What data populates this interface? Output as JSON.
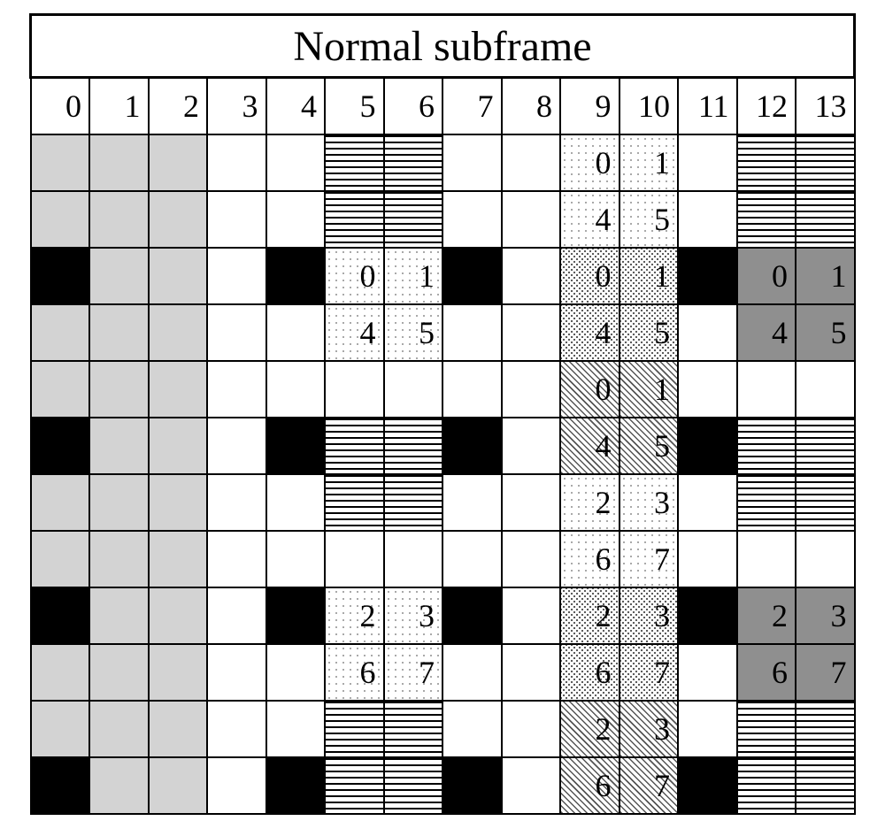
{
  "title": "Normal subframe",
  "columns": 14,
  "rows": 12,
  "font_family": "Times New Roman",
  "title_fontsize_pt": 36,
  "cell_fontsize_pt": 27,
  "palette": {
    "border": "#000000",
    "bg": "#ffffff",
    "light_grey": "#d3d3d3",
    "dark_grey": "#8f8f8f",
    "black": "#000000"
  },
  "fill_legend": {
    "": "white / empty",
    "lgrey": "solid light grey",
    "black": "solid black",
    "dgrey": "solid dark grey",
    "hstripe": "horizontal stripes",
    "diag": "45° diagonal hatch",
    "dots-sparse": "sparse dot stipple",
    "dots-dense": "dense dot stipple"
  },
  "headers": [
    "0",
    "1",
    "2",
    "3",
    "4",
    "5",
    "6",
    "7",
    "8",
    "9",
    "10",
    "11",
    "12",
    "13"
  ],
  "cells": [
    [
      {
        "f": "lgrey"
      },
      {
        "f": "lgrey"
      },
      {
        "f": "lgrey"
      },
      {
        "f": ""
      },
      {
        "f": ""
      },
      {
        "f": "hstripe"
      },
      {
        "f": "hstripe"
      },
      {
        "f": ""
      },
      {
        "f": ""
      },
      {
        "f": "dots-sparse",
        "t": "0"
      },
      {
        "f": "dots-sparse",
        "t": "1"
      },
      {
        "f": ""
      },
      {
        "f": "hstripe"
      },
      {
        "f": "hstripe"
      }
    ],
    [
      {
        "f": "lgrey"
      },
      {
        "f": "lgrey"
      },
      {
        "f": "lgrey"
      },
      {
        "f": ""
      },
      {
        "f": ""
      },
      {
        "f": "hstripe"
      },
      {
        "f": "hstripe"
      },
      {
        "f": ""
      },
      {
        "f": ""
      },
      {
        "f": "dots-sparse",
        "t": "4"
      },
      {
        "f": "dots-sparse",
        "t": "5"
      },
      {
        "f": ""
      },
      {
        "f": "hstripe"
      },
      {
        "f": "hstripe"
      }
    ],
    [
      {
        "f": "black"
      },
      {
        "f": "lgrey"
      },
      {
        "f": "lgrey"
      },
      {
        "f": ""
      },
      {
        "f": "black"
      },
      {
        "f": "dots-sparse",
        "t": "0"
      },
      {
        "f": "dots-sparse",
        "t": "1"
      },
      {
        "f": "black"
      },
      {
        "f": ""
      },
      {
        "f": "dots-dense",
        "t": "0"
      },
      {
        "f": "dots-dense",
        "t": "1"
      },
      {
        "f": "black"
      },
      {
        "f": "dgrey",
        "t": "0"
      },
      {
        "f": "dgrey",
        "t": "1"
      }
    ],
    [
      {
        "f": "lgrey"
      },
      {
        "f": "lgrey"
      },
      {
        "f": "lgrey"
      },
      {
        "f": ""
      },
      {
        "f": ""
      },
      {
        "f": "dots-sparse",
        "t": "4"
      },
      {
        "f": "dots-sparse",
        "t": "5"
      },
      {
        "f": ""
      },
      {
        "f": ""
      },
      {
        "f": "dots-dense",
        "t": "4"
      },
      {
        "f": "dots-dense",
        "t": "5"
      },
      {
        "f": ""
      },
      {
        "f": "dgrey",
        "t": "4"
      },
      {
        "f": "dgrey",
        "t": "5"
      }
    ],
    [
      {
        "f": "lgrey"
      },
      {
        "f": "lgrey"
      },
      {
        "f": "lgrey"
      },
      {
        "f": ""
      },
      {
        "f": ""
      },
      {
        "f": ""
      },
      {
        "f": ""
      },
      {
        "f": ""
      },
      {
        "f": ""
      },
      {
        "f": "diag",
        "t": "0"
      },
      {
        "f": "diag",
        "t": "1"
      },
      {
        "f": ""
      },
      {
        "f": ""
      },
      {
        "f": ""
      }
    ],
    [
      {
        "f": "black"
      },
      {
        "f": "lgrey"
      },
      {
        "f": "lgrey"
      },
      {
        "f": ""
      },
      {
        "f": "black"
      },
      {
        "f": "hstripe"
      },
      {
        "f": "hstripe"
      },
      {
        "f": "black"
      },
      {
        "f": ""
      },
      {
        "f": "diag",
        "t": "4"
      },
      {
        "f": "diag",
        "t": "5"
      },
      {
        "f": "black"
      },
      {
        "f": "hstripe"
      },
      {
        "f": "hstripe"
      }
    ],
    [
      {
        "f": "lgrey"
      },
      {
        "f": "lgrey"
      },
      {
        "f": "lgrey"
      },
      {
        "f": ""
      },
      {
        "f": ""
      },
      {
        "f": "hstripe"
      },
      {
        "f": "hstripe"
      },
      {
        "f": ""
      },
      {
        "f": ""
      },
      {
        "f": "dots-sparse",
        "t": "2"
      },
      {
        "f": "dots-sparse",
        "t": "3"
      },
      {
        "f": ""
      },
      {
        "f": "hstripe"
      },
      {
        "f": "hstripe"
      }
    ],
    [
      {
        "f": "lgrey"
      },
      {
        "f": "lgrey"
      },
      {
        "f": "lgrey"
      },
      {
        "f": ""
      },
      {
        "f": ""
      },
      {
        "f": ""
      },
      {
        "f": ""
      },
      {
        "f": ""
      },
      {
        "f": ""
      },
      {
        "f": "dots-sparse",
        "t": "6"
      },
      {
        "f": "dots-sparse",
        "t": "7"
      },
      {
        "f": ""
      },
      {
        "f": ""
      },
      {
        "f": ""
      }
    ],
    [
      {
        "f": "black"
      },
      {
        "f": "lgrey"
      },
      {
        "f": "lgrey"
      },
      {
        "f": ""
      },
      {
        "f": "black"
      },
      {
        "f": "dots-sparse",
        "t": "2"
      },
      {
        "f": "dots-sparse",
        "t": "3"
      },
      {
        "f": "black"
      },
      {
        "f": ""
      },
      {
        "f": "dots-dense",
        "t": "2"
      },
      {
        "f": "dots-dense",
        "t": "3"
      },
      {
        "f": "black"
      },
      {
        "f": "dgrey",
        "t": "2"
      },
      {
        "f": "dgrey",
        "t": "3"
      }
    ],
    [
      {
        "f": "lgrey"
      },
      {
        "f": "lgrey"
      },
      {
        "f": "lgrey"
      },
      {
        "f": ""
      },
      {
        "f": ""
      },
      {
        "f": "dots-sparse",
        "t": "6"
      },
      {
        "f": "dots-sparse",
        "t": "7"
      },
      {
        "f": ""
      },
      {
        "f": ""
      },
      {
        "f": "dots-dense",
        "t": "6"
      },
      {
        "f": "dots-dense",
        "t": "7"
      },
      {
        "f": ""
      },
      {
        "f": "dgrey",
        "t": "6"
      },
      {
        "f": "dgrey",
        "t": "7"
      }
    ],
    [
      {
        "f": "lgrey"
      },
      {
        "f": "lgrey"
      },
      {
        "f": "lgrey"
      },
      {
        "f": ""
      },
      {
        "f": ""
      },
      {
        "f": "hstripe"
      },
      {
        "f": "hstripe"
      },
      {
        "f": ""
      },
      {
        "f": ""
      },
      {
        "f": "diag",
        "t": "2"
      },
      {
        "f": "diag",
        "t": "3"
      },
      {
        "f": ""
      },
      {
        "f": "hstripe"
      },
      {
        "f": "hstripe"
      }
    ],
    [
      {
        "f": "black"
      },
      {
        "f": "lgrey"
      },
      {
        "f": "lgrey"
      },
      {
        "f": ""
      },
      {
        "f": "black"
      },
      {
        "f": "hstripe"
      },
      {
        "f": "hstripe"
      },
      {
        "f": "black"
      },
      {
        "f": ""
      },
      {
        "f": "diag",
        "t": "6"
      },
      {
        "f": "diag",
        "t": "7"
      },
      {
        "f": "black"
      },
      {
        "f": "hstripe"
      },
      {
        "f": "hstripe"
      }
    ]
  ]
}
